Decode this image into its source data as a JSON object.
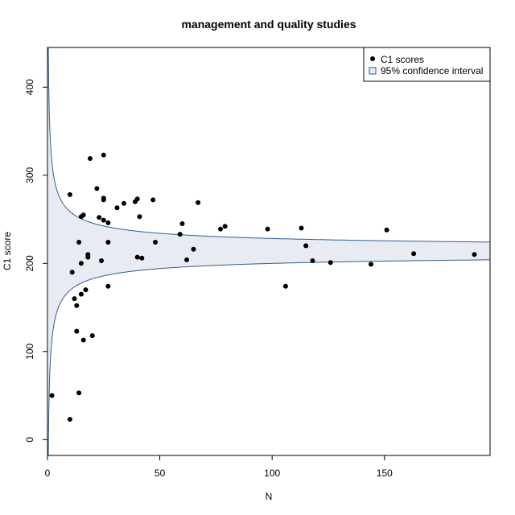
{
  "chart_data": {
    "type": "scatter",
    "title": "management and quality studies",
    "xlabel": "N",
    "ylabel": "C1 score",
    "xlim": [
      0,
      197
    ],
    "ylim": [
      -18,
      445
    ],
    "x_ticks": [
      0,
      50,
      100,
      150
    ],
    "y_ticks": [
      0,
      100,
      200,
      300,
      400
    ],
    "grid": false,
    "legend": {
      "placement": "top-right",
      "entries": [
        {
          "label": "C1 scores",
          "marker": "point"
        },
        {
          "label": "95% confidence interval",
          "marker": "square"
        }
      ]
    },
    "confidence_band": {
      "center": 214.1,
      "half_width_coefficient": 141.5,
      "fill": "#e8ecf2",
      "stroke": "#2e5e8f"
    },
    "series": [
      {
        "name": "C1 scores",
        "color": "#000000",
        "points": [
          [
            2,
            50
          ],
          [
            10,
            23
          ],
          [
            10,
            278
          ],
          [
            11,
            190
          ],
          [
            12,
            160
          ],
          [
            13,
            123
          ],
          [
            13,
            152
          ],
          [
            14,
            53
          ],
          [
            14,
            224
          ],
          [
            15,
            165
          ],
          [
            15,
            253
          ],
          [
            15,
            200
          ],
          [
            16,
            255
          ],
          [
            16,
            113
          ],
          [
            17,
            170
          ],
          [
            18,
            207
          ],
          [
            18,
            210
          ],
          [
            19,
            319
          ],
          [
            20,
            118
          ],
          [
            22,
            285
          ],
          [
            23,
            252
          ],
          [
            24,
            203
          ],
          [
            25,
            323
          ],
          [
            25,
            272
          ],
          [
            25,
            274
          ],
          [
            25,
            249
          ],
          [
            27,
            224
          ],
          [
            27,
            174
          ],
          [
            27,
            246
          ],
          [
            31,
            263
          ],
          [
            34,
            268
          ],
          [
            39,
            270
          ],
          [
            40,
            273
          ],
          [
            40,
            207
          ],
          [
            41,
            253
          ],
          [
            42,
            206
          ],
          [
            47,
            272
          ],
          [
            48,
            224
          ],
          [
            59,
            233
          ],
          [
            60,
            245
          ],
          [
            62,
            204
          ],
          [
            65,
            216
          ],
          [
            67,
            269
          ],
          [
            77,
            239
          ],
          [
            79,
            242
          ],
          [
            98,
            239
          ],
          [
            106,
            174
          ],
          [
            113,
            240
          ],
          [
            115,
            220
          ],
          [
            118,
            203
          ],
          [
            126,
            201
          ],
          [
            144,
            199
          ],
          [
            151,
            238
          ],
          [
            163,
            211
          ],
          [
            190,
            210
          ]
        ]
      }
    ]
  }
}
